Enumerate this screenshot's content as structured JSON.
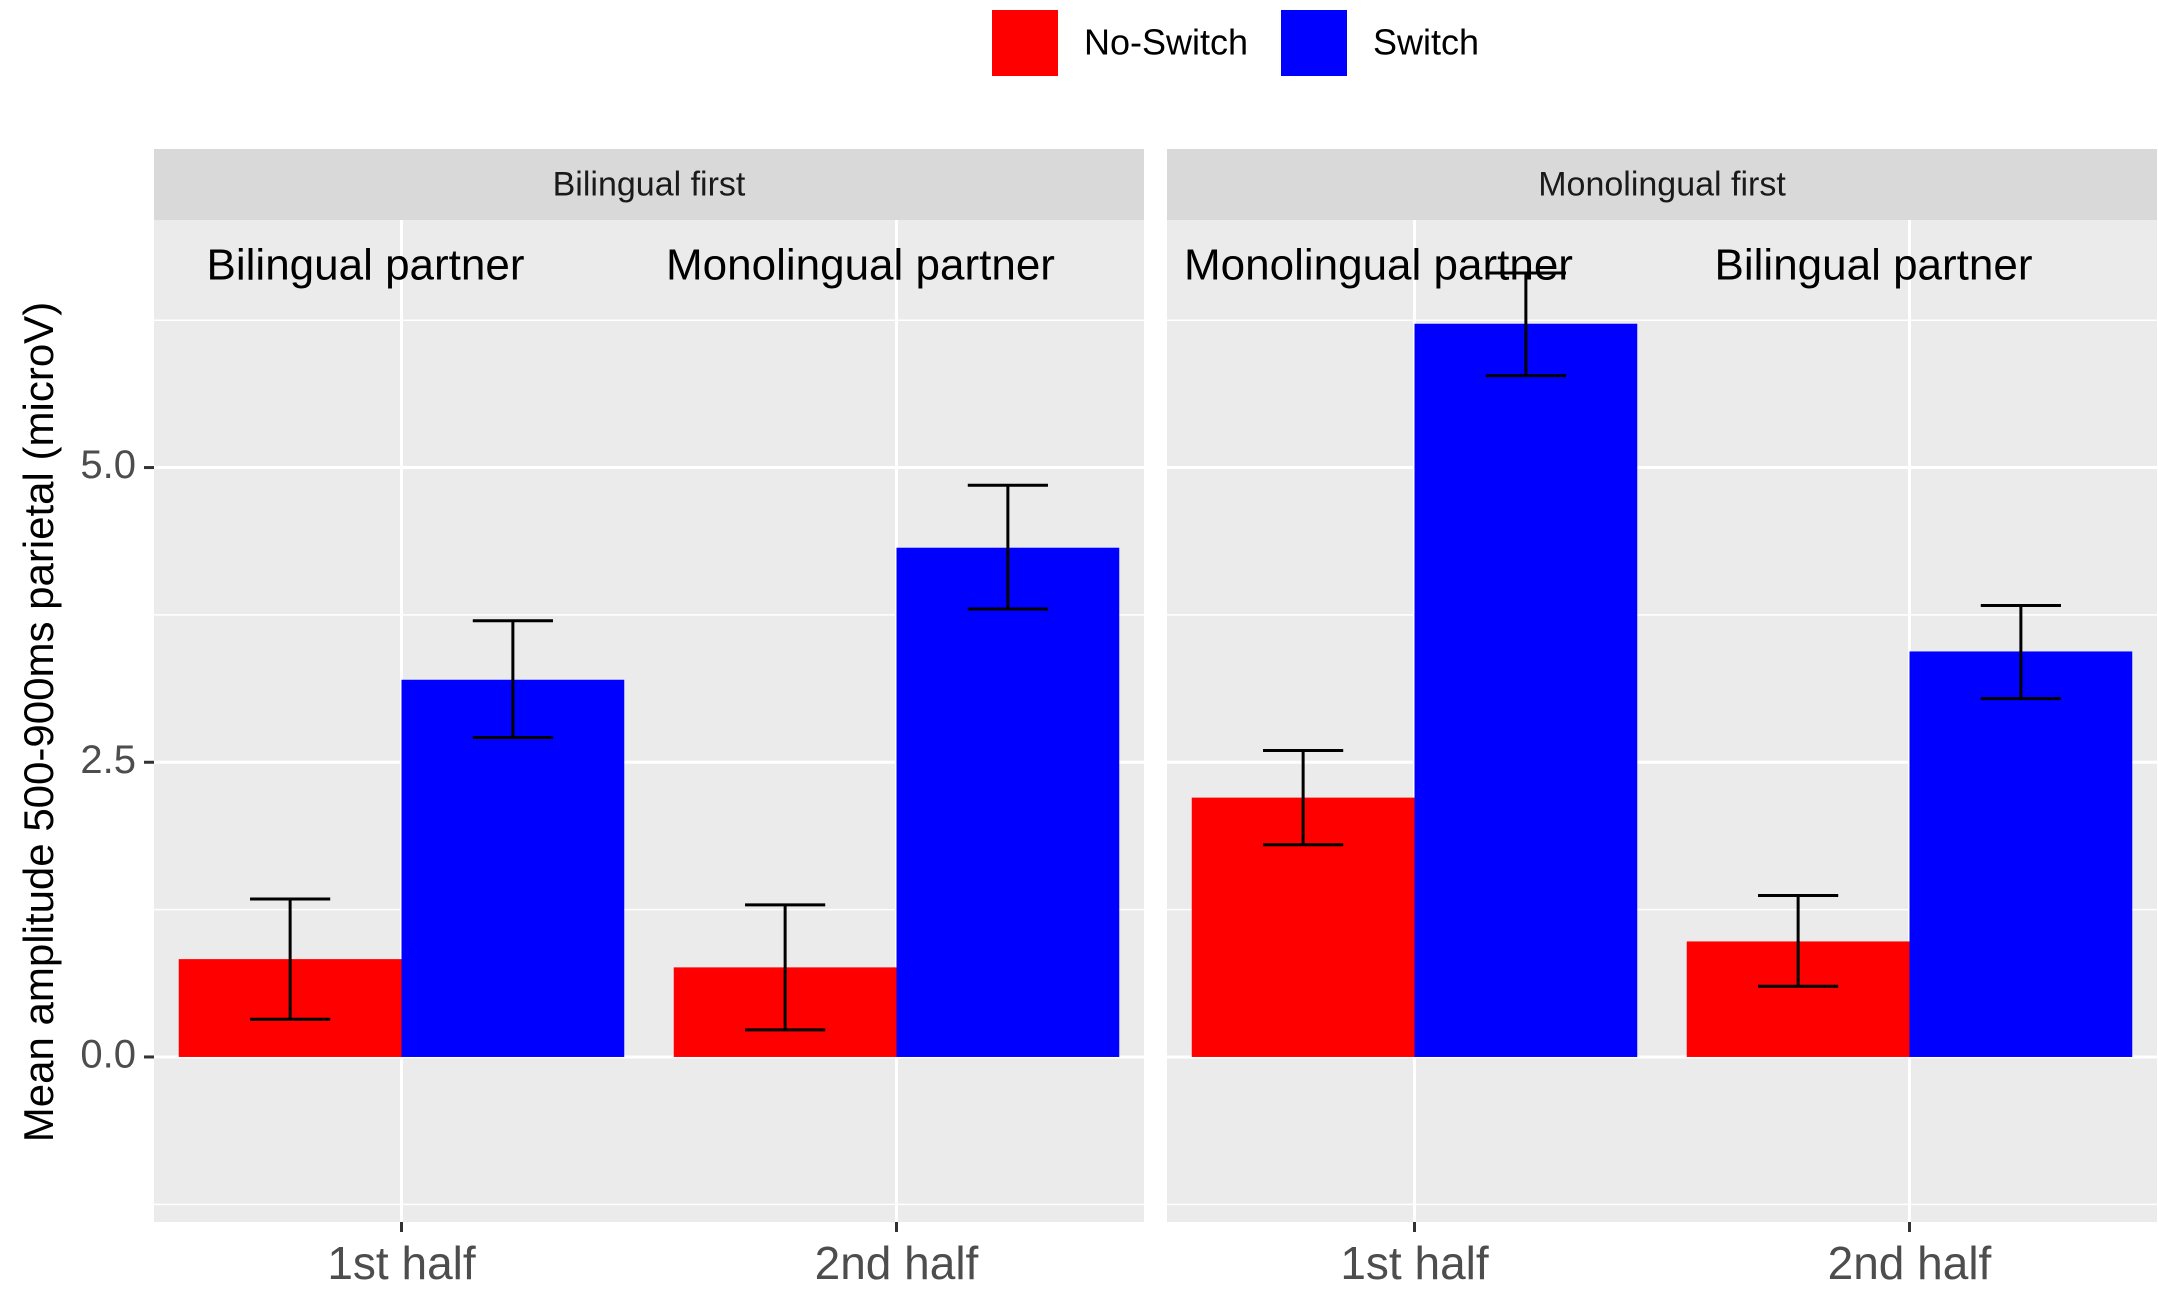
{
  "chart_data": {
    "type": "bar",
    "ylabel": "Mean amplitude 500-900ms parietal (microV)",
    "ylim": [
      -1.4,
      7.1
    ],
    "yticks": [
      0.0,
      2.5,
      5.0
    ],
    "ytick_labels": [
      "0.0",
      "2.5",
      "5.0"
    ],
    "grid": true,
    "legend_position": "top",
    "legend": [
      {
        "name": "No-Switch",
        "color": "#ff0000"
      },
      {
        "name": "Switch",
        "color": "#0000ff"
      }
    ],
    "categories": [
      "1st half",
      "2nd half"
    ],
    "panels": [
      {
        "title": "Bilingual first",
        "annotations": [
          "Bilingual partner",
          "Monolingual partner"
        ],
        "series": [
          {
            "name": "No-Switch",
            "values": [
              0.83,
              0.76
            ],
            "err_low": [
              0.32,
              0.23
            ],
            "err_high": [
              1.34,
              1.29
            ]
          },
          {
            "name": "Switch",
            "values": [
              3.2,
              4.32
            ],
            "err_low": [
              2.71,
              3.8
            ],
            "err_high": [
              3.7,
              4.85
            ]
          }
        ]
      },
      {
        "title": "Monolingual first",
        "annotations": [
          "Monolingual partner",
          "Bilingual partner"
        ],
        "series": [
          {
            "name": "No-Switch",
            "values": [
              2.2,
              0.98
            ],
            "err_low": [
              1.8,
              0.6
            ],
            "err_high": [
              2.6,
              1.37
            ]
          },
          {
            "name": "Switch",
            "values": [
              6.22,
              3.44
            ],
            "err_low": [
              5.78,
              3.04
            ],
            "err_high": [
              6.65,
              3.83
            ]
          }
        ]
      }
    ]
  }
}
